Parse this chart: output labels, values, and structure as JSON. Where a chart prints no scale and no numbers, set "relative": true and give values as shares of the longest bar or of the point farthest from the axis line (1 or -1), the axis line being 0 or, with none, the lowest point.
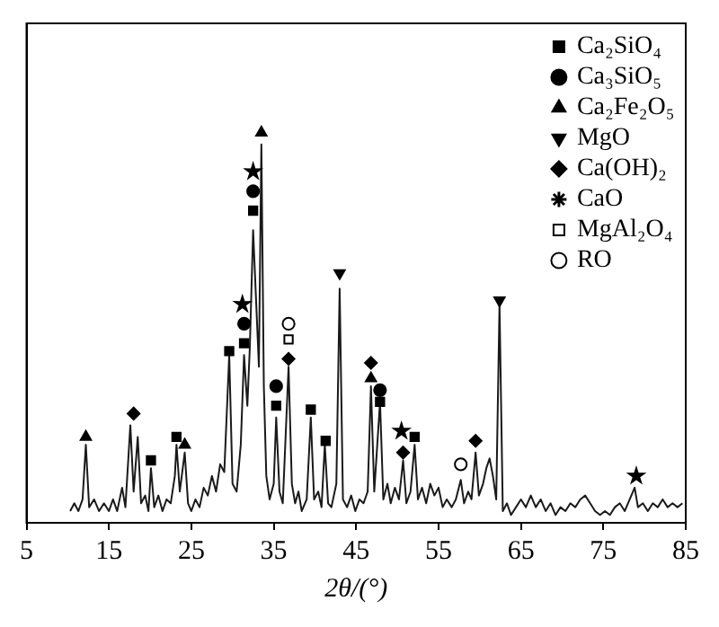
{
  "chart_data": {
    "type": "line",
    "relative": true,
    "xlabel": "2θ/(°)",
    "xlim": [
      5,
      85
    ],
    "xticks": [
      5,
      15,
      25,
      35,
      45,
      55,
      65,
      75,
      85
    ],
    "legend": "top right",
    "grid": false,
    "series": [
      {
        "type": "line",
        "color": "#1a1a1a",
        "marker": "none",
        "x": [
          10.3,
          10.8,
          11.3,
          11.8,
          12.2,
          12.6,
          13.2,
          13.8,
          14.4,
          15.0,
          15.5,
          16.0,
          16.6,
          17.0,
          17.6,
          18.0,
          18.5,
          18.9,
          19.4,
          19.8,
          20.1,
          20.5,
          21.0,
          21.5,
          22.0,
          22.5,
          23.0,
          23.2,
          23.6,
          24.2,
          24.6,
          25.0,
          25.5,
          26.0,
          26.5,
          27.0,
          27.5,
          28.0,
          28.5,
          29.0,
          29.6,
          30.0,
          30.5,
          31.0,
          31.4,
          31.8,
          32.1,
          32.5,
          32.9,
          33.2,
          33.5,
          33.8,
          34.1,
          34.5,
          35.0,
          35.3,
          35.7,
          36.1,
          36.8,
          37.2,
          37.6,
          38.0,
          38.4,
          39.0,
          39.5,
          39.9,
          40.4,
          40.8,
          41.2,
          41.6,
          42.0,
          42.6,
          43.0,
          43.4,
          43.9,
          44.4,
          44.9,
          45.4,
          45.9,
          46.4,
          46.8,
          47.2,
          47.9,
          48.3,
          48.8,
          49.2,
          49.7,
          50.2,
          50.7,
          51.1,
          51.6,
          52.1,
          52.5,
          53.0,
          53.5,
          54.0,
          54.5,
          55.0,
          55.5,
          56.0,
          56.6,
          57.1,
          57.7,
          58.1,
          58.6,
          59.0,
          59.5,
          59.9,
          60.4,
          60.8,
          61.2,
          61.6,
          62.0,
          62.4,
          62.8,
          63.3,
          63.8,
          64.4,
          65.0,
          65.6,
          66.2,
          66.8,
          67.4,
          68.0,
          68.6,
          69.2,
          69.8,
          70.4,
          71.0,
          71.6,
          72.2,
          72.8,
          73.4,
          74.0,
          74.6,
          75.2,
          75.8,
          76.4,
          77.0,
          77.6,
          78.2,
          78.8,
          79.2,
          79.8,
          80.4,
          81.0,
          81.6,
          82.2,
          82.8,
          83.4,
          84.0,
          84.6
        ],
        "values": [
          0.03,
          0.05,
          0.03,
          0.06,
          0.2,
          0.04,
          0.06,
          0.03,
          0.05,
          0.03,
          0.06,
          0.03,
          0.09,
          0.04,
          0.25,
          0.08,
          0.22,
          0.05,
          0.07,
          0.03,
          0.14,
          0.04,
          0.07,
          0.03,
          0.06,
          0.05,
          0.12,
          0.2,
          0.08,
          0.18,
          0.05,
          0.03,
          0.06,
          0.04,
          0.09,
          0.07,
          0.12,
          0.08,
          0.15,
          0.13,
          0.43,
          0.1,
          0.08,
          0.2,
          0.43,
          0.3,
          0.45,
          0.75,
          0.55,
          0.4,
          0.97,
          0.35,
          0.12,
          0.06,
          0.1,
          0.27,
          0.08,
          0.05,
          0.4,
          0.1,
          0.05,
          0.08,
          0.03,
          0.06,
          0.27,
          0.06,
          0.08,
          0.04,
          0.2,
          0.05,
          0.04,
          0.1,
          0.6,
          0.06,
          0.04,
          0.07,
          0.03,
          0.06,
          0.05,
          0.08,
          0.35,
          0.08,
          0.31,
          0.06,
          0.1,
          0.05,
          0.09,
          0.06,
          0.16,
          0.05,
          0.08,
          0.2,
          0.06,
          0.09,
          0.05,
          0.1,
          0.07,
          0.09,
          0.04,
          0.06,
          0.04,
          0.06,
          0.11,
          0.05,
          0.08,
          0.06,
          0.18,
          0.07,
          0.1,
          0.14,
          0.165,
          0.12,
          0.06,
          0.56,
          0.03,
          0.05,
          0.02,
          0.04,
          0.06,
          0.04,
          0.07,
          0.04,
          0.06,
          0.03,
          0.05,
          0.02,
          0.04,
          0.03,
          0.05,
          0.04,
          0.06,
          0.07,
          0.05,
          0.03,
          0.02,
          0.03,
          0.02,
          0.04,
          0.05,
          0.03,
          0.06,
          0.09,
          0.04,
          0.05,
          0.03,
          0.05,
          0.04,
          0.06,
          0.04,
          0.05,
          0.04,
          0.05
        ]
      },
      {
        "type": "scatter",
        "name": "Ca₂SiO₄",
        "color": "#000000",
        "marker": "square",
        "x": [
          20.1,
          23.2,
          29.6,
          31.4,
          32.5,
          35.3,
          39.5,
          41.3,
          47.9,
          52.1
        ],
        "values": [
          0.16,
          0.22,
          0.44,
          0.46,
          0.8,
          0.3,
          0.29,
          0.21,
          0.31,
          0.22
        ]
      },
      {
        "type": "scatter",
        "name": "Ca₃SiO₅",
        "color": "#000000",
        "marker": "circle",
        "x": [
          31.4,
          32.5,
          35.3,
          47.9
        ],
        "values": [
          0.51,
          0.85,
          0.35,
          0.34
        ]
      },
      {
        "type": "scatter",
        "name": "Ca₂Fe₂O₅",
        "color": "#000000",
        "marker": "triangle",
        "x": [
          12.2,
          24.2,
          33.5,
          46.8
        ],
        "values": [
          0.22,
          0.2,
          1.0,
          0.37
        ]
      },
      {
        "type": "scatter",
        "name": "MgO",
        "color": "#000000",
        "marker": "triangle-down",
        "x": [
          43.0,
          62.4
        ],
        "values": [
          0.64,
          0.57
        ]
      },
      {
        "type": "scatter",
        "name": "Ca(OH)₂",
        "color": "#000000",
        "marker": "diamond",
        "x": [
          18.0,
          36.8,
          46.8,
          50.7,
          59.5
        ],
        "values": [
          0.28,
          0.42,
          0.41,
          0.18,
          0.21
        ]
      },
      {
        "type": "scatter",
        "name": "CaO",
        "color": "#000000",
        "marker": "star",
        "x": [
          31.2,
          32.5,
          50.5,
          79.0
        ],
        "values": [
          0.56,
          0.9,
          0.235,
          0.12
        ]
      },
      {
        "type": "scatter",
        "name": "MgAl₂O₄",
        "color": "#ffffff",
        "marker": "square",
        "x": [
          36.8
        ],
        "values": [
          0.47
        ]
      },
      {
        "type": "scatter",
        "name": "RO",
        "color": "#ffffff",
        "marker": "circle",
        "x": [
          36.8,
          57.7
        ],
        "values": [
          0.51,
          0.15
        ]
      }
    ]
  }
}
